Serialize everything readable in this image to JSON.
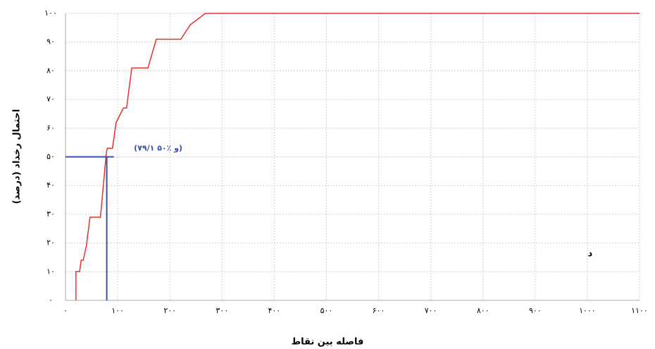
{
  "chart_data": {
    "type": "line",
    "xlabel": "فاصله بین نقاط",
    "ylabel": "احتمال رخداد (درصد)",
    "panel_label": "د",
    "annotation": "(۷۹/۱ و ٪۵۰)",
    "crosshair": {
      "x": 79.1,
      "y": 50
    },
    "color": "#e8302a",
    "crosshair_color": "#3a4fb0",
    "grid": true,
    "x": [
      20,
      20,
      27,
      30,
      34,
      40,
      47,
      67,
      78,
      80,
      90,
      97,
      111,
      117,
      127,
      158,
      174,
      221,
      239,
      268,
      1100
    ],
    "values": [
      0,
      10,
      10,
      14,
      14,
      19,
      29,
      29,
      51,
      53,
      53,
      62,
      67,
      67,
      81,
      81,
      91,
      91,
      96,
      100,
      100
    ],
    "xlim": [
      0,
      1100
    ],
    "ylim": [
      0,
      100
    ],
    "xticks": [
      {
        "value": 0,
        "label": "۰"
      },
      {
        "value": 100,
        "label": "۱۰۰"
      },
      {
        "value": 200,
        "label": "۲۰۰"
      },
      {
        "value": 300,
        "label": "۳۰۰"
      },
      {
        "value": 400,
        "label": "۴۰۰"
      },
      {
        "value": 500,
        "label": "۵۰۰"
      },
      {
        "value": 600,
        "label": "۶۰۰"
      },
      {
        "value": 700,
        "label": "۷۰۰"
      },
      {
        "value": 800,
        "label": "۸۰۰"
      },
      {
        "value": 900,
        "label": "۹۰۰"
      },
      {
        "value": 1000,
        "label": "۱۰۰۰"
      },
      {
        "value": 1100,
        "label": "۱۱۰۰"
      }
    ],
    "yticks": [
      {
        "value": 0,
        "label": "۰"
      },
      {
        "value": 10,
        "label": "۱۰"
      },
      {
        "value": 20,
        "label": "۲۰"
      },
      {
        "value": 30,
        "label": "۳۰"
      },
      {
        "value": 40,
        "label": "۴۰"
      },
      {
        "value": 50,
        "label": "۵۰"
      },
      {
        "value": 60,
        "label": "۶۰"
      },
      {
        "value": 70,
        "label": "۷۰"
      },
      {
        "value": 80,
        "label": "۸۰"
      },
      {
        "value": 90,
        "label": "۹۰"
      },
      {
        "value": 100,
        "label": "۱۰۰"
      }
    ]
  }
}
